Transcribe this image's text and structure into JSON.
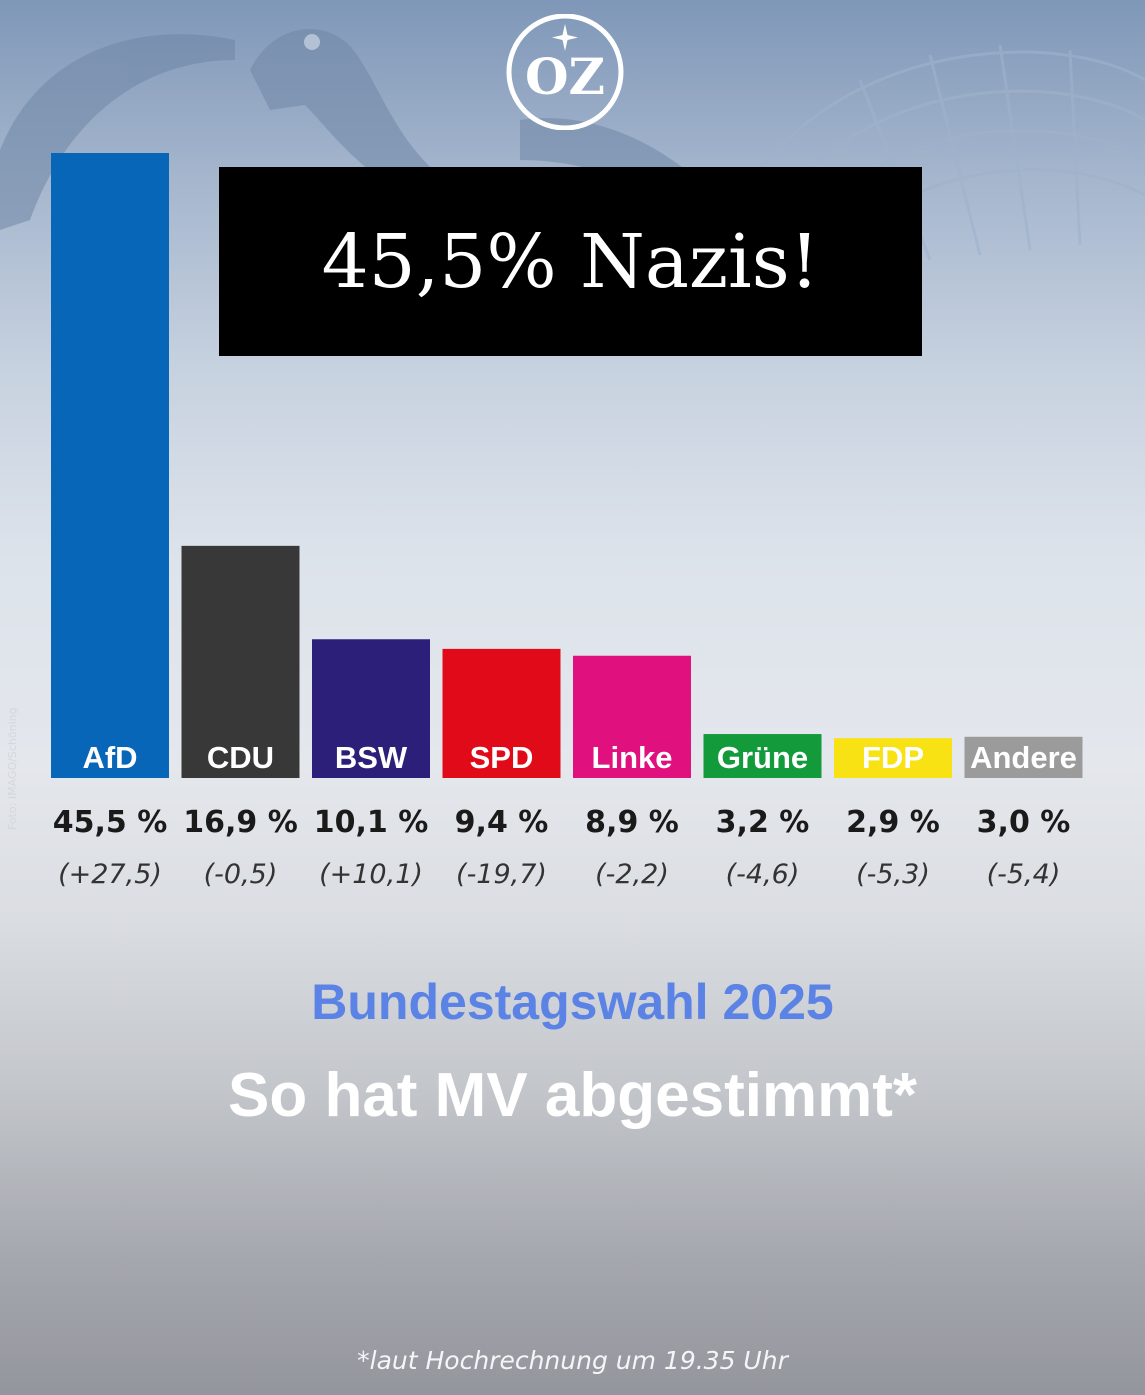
{
  "headline": "45,5% Nazis!",
  "logo": {
    "text": "OZ",
    "icon": "star-icon"
  },
  "photo_credit": "Foto: IMAGO/Schöning",
  "subtitle": "Bundestagswahl 2025",
  "title": "So hat MV abgestimmt*",
  "footnote": "*laut Hochrechnung um 19.35 Uhr",
  "colors": {
    "subtitle": "#5b83e6",
    "headline_bg": "#000000",
    "AfD": "#0866b9",
    "CDU": "#383838",
    "BSW": "#2b1f7a",
    "SPD": "#e00a18",
    "Linke": "#e0107f",
    "Grüne": "#139a3b",
    "FDP": "#f8e214",
    "Andere": "#9b9b9b"
  },
  "chart_data": {
    "type": "bar",
    "categories": [
      "AfD",
      "CDU",
      "BSW",
      "SPD",
      "Linke",
      "Grüne",
      "FDP",
      "Andere"
    ],
    "values": [
      45.5,
      16.9,
      10.1,
      9.4,
      8.9,
      3.2,
      2.9,
      3.0
    ],
    "value_labels": [
      "45,5 %",
      "16,9 %",
      "10,1 %",
      "9,4 %",
      "8,9 %",
      "3,2 %",
      "2,9 %",
      "3,0 %"
    ],
    "changes": [
      27.5,
      -0.5,
      10.1,
      -19.7,
      -2.2,
      -4.6,
      -5.3,
      -5.4
    ],
    "change_labels": [
      "(+27,5)",
      "(-0,5)",
      "(+10,1)",
      "(-19,7)",
      "(-2,2)",
      "(-4,6)",
      "(-5,3)",
      "(-5,4)"
    ],
    "title": "",
    "xlabel": "",
    "ylabel": "",
    "grid": false,
    "legend": "none"
  }
}
